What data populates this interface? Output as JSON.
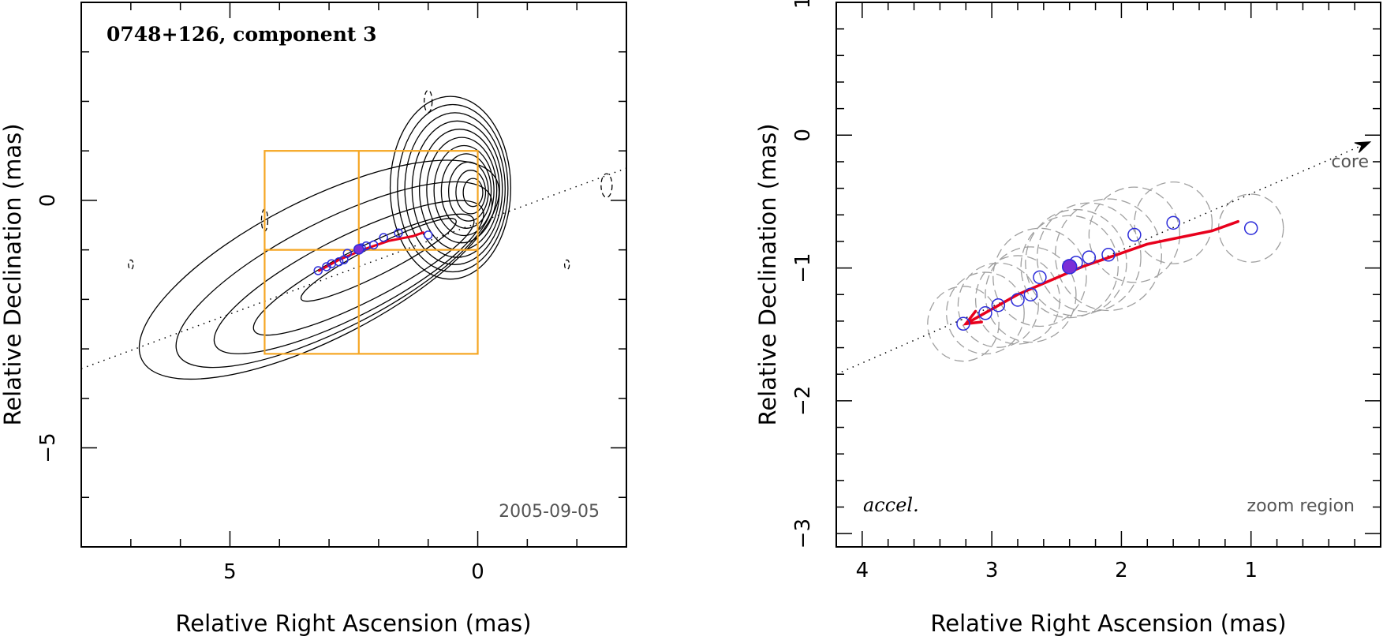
{
  "chart_data": [
    {
      "type": "contour",
      "title": "0748+126, component 3",
      "xlabel": "Relative Right Ascension (mas)",
      "ylabel": "Relative Declination (mas)",
      "xlim": [
        8.0,
        -3.0
      ],
      "ylim": [
        -7.0,
        4.0
      ],
      "xticks": [
        5,
        0
      ],
      "yticks": [
        0,
        -5
      ],
      "date": "2005-09-05",
      "ridge_line": {
        "x": [
          8.0,
          -3.0
        ],
        "y": [
          -3.4,
          0.65
        ]
      },
      "zoom_region": {
        "x": [
          4.3,
          0.0
        ],
        "y": [
          -3.1,
          1.0
        ],
        "divider_x": 2.4,
        "divider_y": -1.0
      },
      "track": {
        "x": [
          3.2,
          2.8,
          2.3,
          1.8,
          1.3,
          1.1
        ],
        "y": [
          -1.42,
          -1.2,
          -0.99,
          -0.82,
          -0.72,
          -0.65
        ]
      },
      "positions": {
        "x": [
          3.22,
          3.05,
          2.95,
          2.8,
          2.7,
          2.63,
          2.4,
          2.35,
          2.25,
          2.1,
          1.9,
          1.6,
          1.0
        ],
        "y": [
          -1.42,
          -1.34,
          -1.28,
          -1.24,
          -1.2,
          -1.07,
          -0.99,
          -0.96,
          -0.92,
          -0.9,
          -0.75,
          -0.66,
          -0.7
        ]
      },
      "filled_point": {
        "x": 2.4,
        "y": -0.99
      },
      "colors": {
        "track": "#e8001c",
        "positions": "#2b2bd9",
        "zoom_region": "#f5a623",
        "contours": "#000000"
      }
    },
    {
      "type": "scatter",
      "xlabel": "Relative Right Ascension (mas)",
      "ylabel": "Relative Declination (mas)",
      "xlim": [
        4.2,
        0.0
      ],
      "ylim": [
        -3.1,
        1.0
      ],
      "xticks": [
        4,
        3,
        2,
        1
      ],
      "yticks": [
        1,
        0,
        -1,
        -2,
        -3
      ],
      "core_label": "core",
      "accel_label": "accel.",
      "zoom_label": "zoom region",
      "ridge_line": {
        "x": [
          4.2,
          0.08
        ],
        "y": [
          -1.8,
          -0.05
        ]
      },
      "track": {
        "x": [
          3.2,
          2.8,
          2.3,
          1.8,
          1.3,
          1.1
        ],
        "y": [
          -1.42,
          -1.2,
          -0.99,
          -0.82,
          -0.72,
          -0.65
        ]
      },
      "positions": {
        "x": [
          3.22,
          3.05,
          2.95,
          2.8,
          2.7,
          2.63,
          2.4,
          2.35,
          2.25,
          2.1,
          1.9,
          1.6,
          1.0
        ],
        "y": [
          -1.42,
          -1.34,
          -1.28,
          -1.24,
          -1.2,
          -1.07,
          -0.99,
          -0.96,
          -0.92,
          -0.9,
          -0.75,
          -0.66,
          -0.7
        ]
      },
      "filled_point": {
        "x": 2.4,
        "y": -0.99
      },
      "component_sizes_mas": {
        "x": [
          3.22,
          3.05,
          2.95,
          2.8,
          2.7,
          2.63,
          2.4,
          2.35,
          2.25,
          2.1,
          1.9,
          1.6,
          1.0
        ],
        "y": [
          -1.42,
          -1.34,
          -1.28,
          -1.24,
          -1.2,
          -1.07,
          -0.99,
          -0.96,
          -0.92,
          -0.9,
          -0.75,
          -0.66,
          -0.7
        ],
        "diameter": [
          0.55,
          0.6,
          0.62,
          0.65,
          0.7,
          0.72,
          0.75,
          0.78,
          0.8,
          0.82,
          0.7,
          0.6,
          0.5
        ]
      },
      "colors": {
        "track": "#e8001c",
        "positions": "#2b2bd9",
        "ellipses": "#a0a0a0"
      }
    }
  ]
}
